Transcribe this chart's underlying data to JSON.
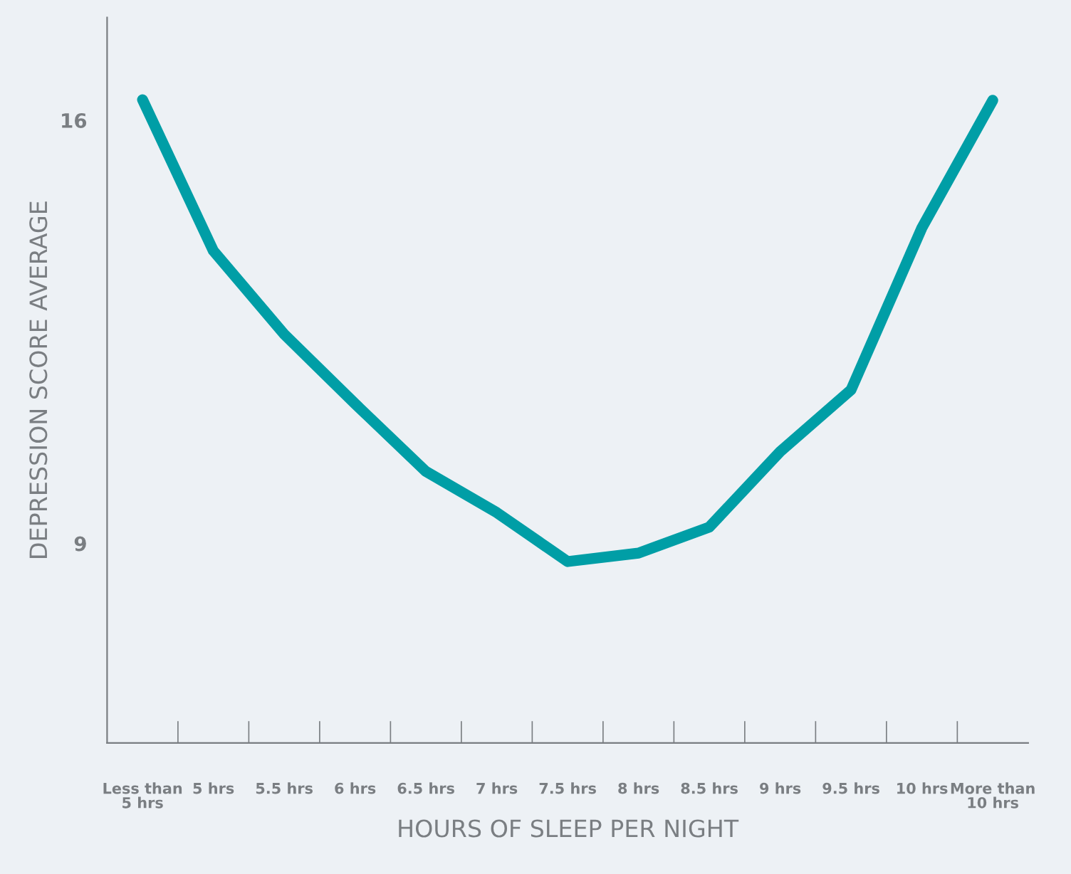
{
  "chart_data": {
    "type": "line",
    "xlabel": "HOURS OF SLEEP PER NIGHT",
    "ylabel": "DEPRESSION SCORE AVERAGE",
    "categories": [
      "Less than\n5 hrs",
      "5 hrs",
      "5.5 hrs",
      "6 hrs",
      "6.5 hrs",
      "7 hrs",
      "7.5 hrs",
      "8 hrs",
      "8.5 hrs",
      "9 hrs",
      "9.5 hrs",
      "10 hrs",
      "More than\n10 hrs"
    ],
    "series": [
      {
        "color": "#009ea6",
        "values": [
          16.34,
          13.84,
          12.46,
          11.31,
          10.19,
          9.51,
          8.7,
          8.84,
          9.27,
          10.52,
          11.54,
          14.22,
          16.33
        ]
      }
    ],
    "ylim": [
      5.7,
      17.7
    ],
    "yticks": [
      9,
      16
    ],
    "grid": false,
    "legend": false,
    "marker": "none",
    "line_style": "solid"
  }
}
